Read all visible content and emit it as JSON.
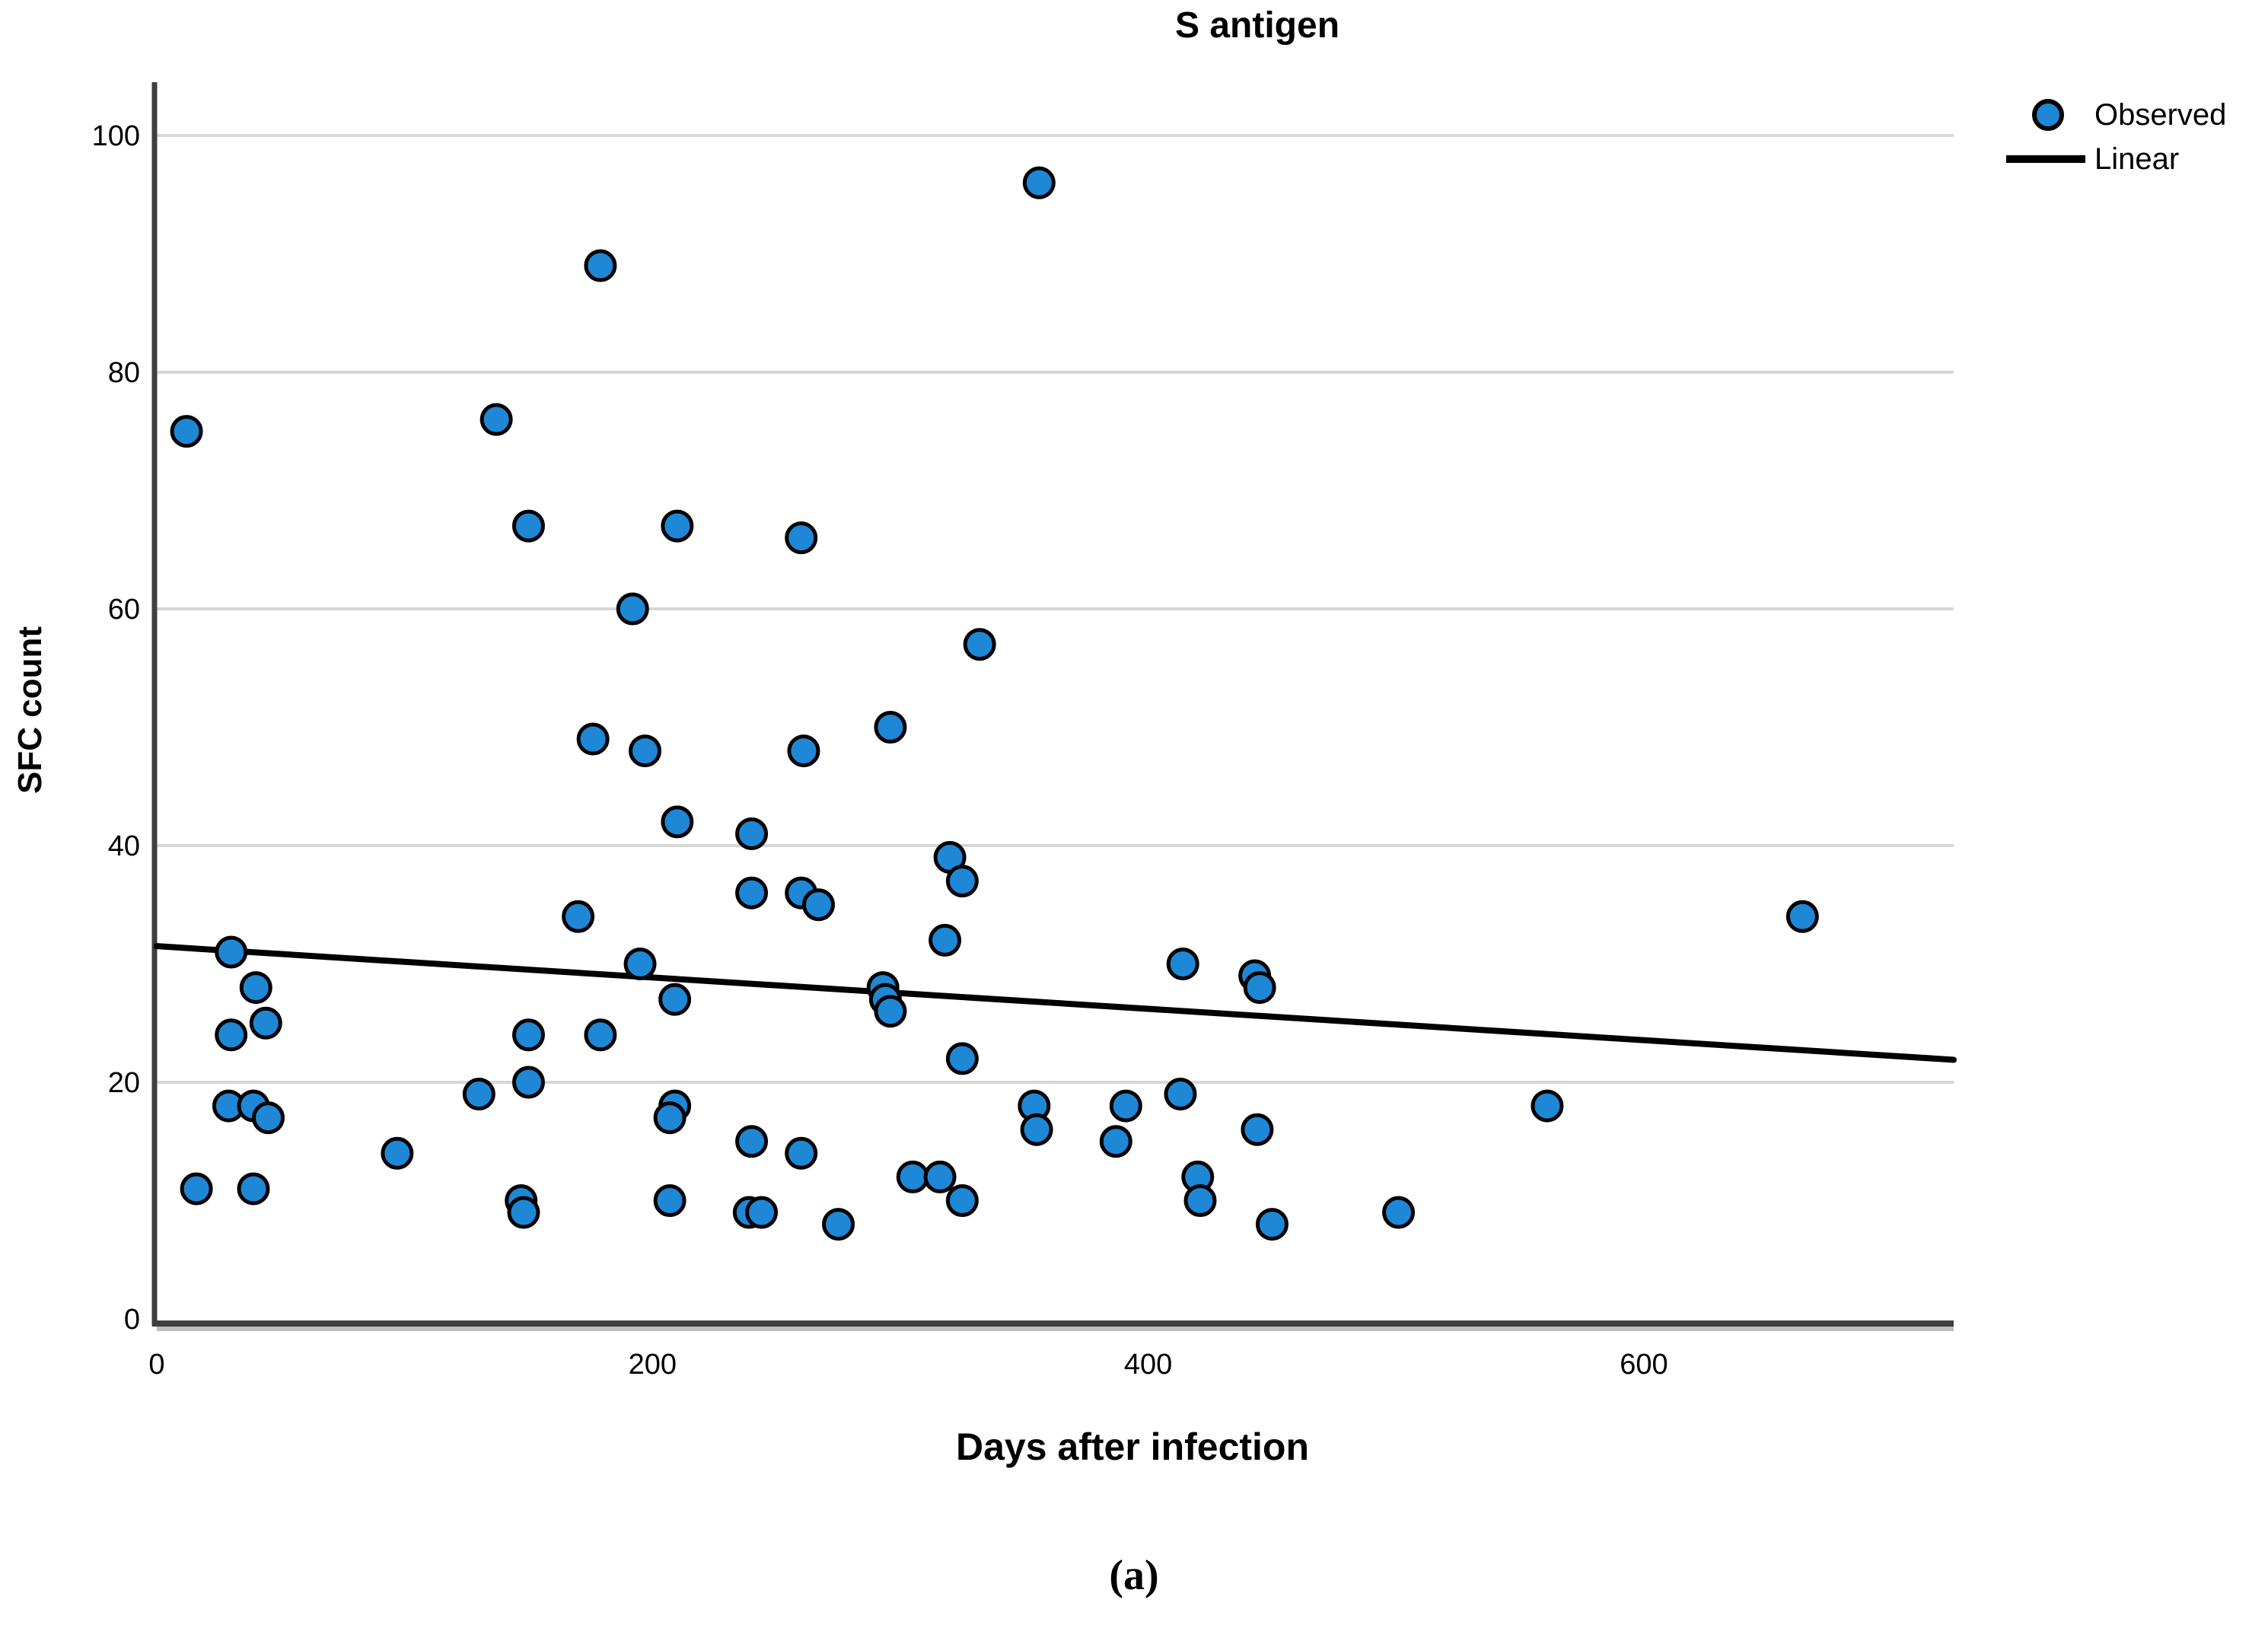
{
  "chart_data": {
    "type": "scatter",
    "title": "S antigen",
    "xlabel": "Days after infection",
    "ylabel": "SFC count",
    "caption": "(a)",
    "xlim": [
      0,
      725
    ],
    "ylim": [
      0,
      104.5
    ],
    "x_ticks": [
      0,
      200,
      400,
      600
    ],
    "y_ticks": [
      0,
      20,
      40,
      60,
      80,
      100
    ],
    "grid": "horizontal",
    "legend_position": "top-right",
    "legend": [
      {
        "label": "Observed",
        "marker": "dot"
      },
      {
        "label": "Linear",
        "marker": "line"
      }
    ],
    "series": [
      {
        "name": "Observed",
        "points": [
          [
            356,
            96
          ],
          [
            179,
            89
          ],
          [
            137,
            76
          ],
          [
            12,
            75
          ],
          [
            150,
            67
          ],
          [
            210,
            67
          ],
          [
            260,
            66
          ],
          [
            192,
            60
          ],
          [
            332,
            57
          ],
          [
            296,
            50
          ],
          [
            176,
            49
          ],
          [
            197,
            48
          ],
          [
            261,
            48
          ],
          [
            210,
            42
          ],
          [
            240,
            41
          ],
          [
            320,
            39
          ],
          [
            325,
            37
          ],
          [
            240,
            36
          ],
          [
            260,
            36
          ],
          [
            267,
            35
          ],
          [
            170,
            34
          ],
          [
            664,
            34
          ],
          [
            318,
            32
          ],
          [
            30,
            31
          ],
          [
            195,
            30
          ],
          [
            414,
            30
          ],
          [
            443,
            29
          ],
          [
            40,
            28
          ],
          [
            445,
            28
          ],
          [
            293,
            28
          ],
          [
            209,
            27
          ],
          [
            294,
            27
          ],
          [
            296,
            26
          ],
          [
            44,
            25
          ],
          [
            30,
            24
          ],
          [
            150,
            24
          ],
          [
            179,
            24
          ],
          [
            325,
            22
          ],
          [
            150,
            20
          ],
          [
            130,
            19
          ],
          [
            413,
            19
          ],
          [
            29,
            18
          ],
          [
            39,
            18
          ],
          [
            209,
            18
          ],
          [
            354,
            18
          ],
          [
            391,
            18
          ],
          [
            561,
            18
          ],
          [
            45,
            17
          ],
          [
            207,
            17
          ],
          [
            355,
            16
          ],
          [
            444,
            16
          ],
          [
            240,
            15
          ],
          [
            387,
            15
          ],
          [
            97,
            14
          ],
          [
            260,
            14
          ],
          [
            420,
            12
          ],
          [
            305,
            12
          ],
          [
            316,
            12
          ],
          [
            16,
            11
          ],
          [
            39,
            11
          ],
          [
            421,
            10
          ],
          [
            325,
            10
          ],
          [
            207,
            10
          ],
          [
            147,
            10
          ],
          [
            148,
            9
          ],
          [
            239,
            9
          ],
          [
            244,
            9
          ],
          [
            501,
            9
          ],
          [
            275,
            8
          ],
          [
            450,
            8
          ]
        ]
      },
      {
        "name": "Linear",
        "fit_line": {
          "x1": 0,
          "y1": 31.5,
          "x2": 725,
          "y2": 21.9
        }
      }
    ],
    "colors": {
      "dot_fill": "#1e87d6",
      "dot_stroke": "#000000",
      "fit_line": "#000000",
      "grid_line": "#d7d7d7",
      "axis_line": "#3f3f3f",
      "axis_shadow": "#bdbdbd",
      "text": "#000000"
    }
  }
}
